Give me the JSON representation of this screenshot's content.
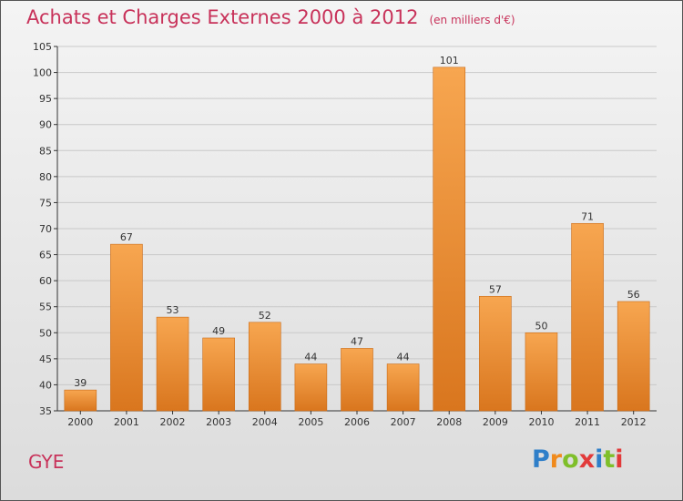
{
  "title": "Achats et Charges Externes 2000 à 2012",
  "subtitle": "(en milliers d'€)",
  "place_label": "GYE",
  "logo": {
    "letters": [
      "P",
      "r",
      "o",
      "x",
      "i",
      "t",
      "i"
    ],
    "colors": [
      "#2f7fc9",
      "#f08a1c",
      "#7fbf2a",
      "#e23a3a",
      "#2f7fc9",
      "#7fbf2a",
      "#e23a3a"
    ]
  },
  "colors": {
    "title": "#c8325a",
    "bar_top": "#f7a650",
    "bar_bottom": "#d9761e",
    "grid": "#c9c9c9",
    "axis": "#333333"
  },
  "chart_data": {
    "type": "bar",
    "categories": [
      "2000",
      "2001",
      "2002",
      "2003",
      "2004",
      "2005",
      "2006",
      "2007",
      "2008",
      "2009",
      "2010",
      "2011",
      "2012"
    ],
    "values": [
      39,
      67,
      53,
      49,
      52,
      44,
      47,
      44,
      101,
      57,
      50,
      71,
      56
    ],
    "ylim": [
      35,
      105
    ],
    "yticks": [
      35,
      40,
      45,
      50,
      55,
      60,
      65,
      70,
      75,
      80,
      85,
      90,
      95,
      100,
      105
    ],
    "grid": true,
    "data_labels": true
  }
}
